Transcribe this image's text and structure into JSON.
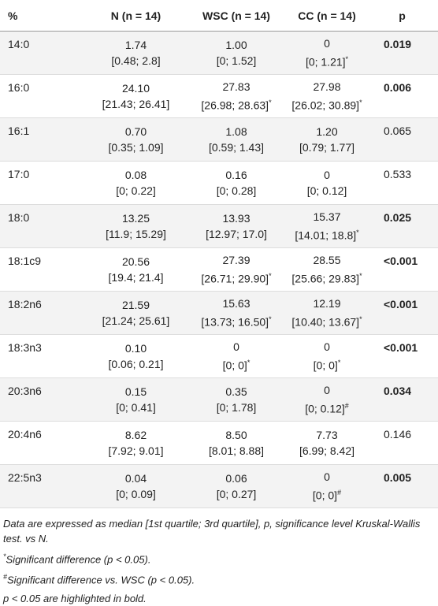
{
  "table": {
    "header": [
      "%",
      "N (n = 14)",
      "WSC (n = 14)",
      "CC (n = 14)",
      "p"
    ],
    "rows": [
      {
        "label": "14:0",
        "cells": [
          {
            "median": "1.74",
            "range": "[0.48; 2.8]"
          },
          {
            "median": "1.00",
            "range": "[0; 1.52]"
          },
          {
            "median": "0",
            "range": "[0; 1.21]",
            "note": "*"
          }
        ],
        "p": "0.019",
        "bold": true
      },
      {
        "label": "16:0",
        "cells": [
          {
            "median": "24.10",
            "range": "[21.43; 26.41]"
          },
          {
            "median": "27.83",
            "range": "[26.98; 28.63]",
            "note": "*"
          },
          {
            "median": "27.98",
            "range": "[26.02; 30.89]",
            "note": "*"
          }
        ],
        "p": "0.006",
        "bold": true
      },
      {
        "label": "16:1",
        "cells": [
          {
            "median": "0.70",
            "range": "[0.35; 1.09]"
          },
          {
            "median": "1.08",
            "range": "[0.59; 1.43]"
          },
          {
            "median": "1.20",
            "range": "[0.79; 1.77]"
          }
        ],
        "p": "0.065",
        "bold": false
      },
      {
        "label": "17:0",
        "cells": [
          {
            "median": "0.08",
            "range": "[0; 0.22]"
          },
          {
            "median": "0.16",
            "range": "[0; 0.28]"
          },
          {
            "median": "0",
            "range": "[0; 0.12]"
          }
        ],
        "p": "0.533",
        "bold": false
      },
      {
        "label": "18:0",
        "cells": [
          {
            "median": "13.25",
            "range": "[11.9; 15.29]"
          },
          {
            "median": "13.93",
            "range": "[12.97; 17.0]"
          },
          {
            "median": "15.37",
            "range": "[14.01; 18.8]",
            "note": "*"
          }
        ],
        "p": "0.025",
        "bold": true
      },
      {
        "label": "18:1c9",
        "cells": [
          {
            "median": "20.56",
            "range": "[19.4; 21.4]"
          },
          {
            "median": "27.39",
            "range": "[26.71; 29.90]",
            "note": "*"
          },
          {
            "median": "28.55",
            "range": "[25.66; 29.83]",
            "note": "*"
          }
        ],
        "p": "<0.001",
        "bold": true
      },
      {
        "label": "18:2n6",
        "cells": [
          {
            "median": "21.59",
            "range": "[21.24; 25.61]"
          },
          {
            "median": "15.63",
            "range": "[13.73; 16.50]",
            "note": "*"
          },
          {
            "median": "12.19",
            "range": "[10.40; 13.67]",
            "note": "*"
          }
        ],
        "p": "<0.001",
        "bold": true
      },
      {
        "label": "18:3n3",
        "cells": [
          {
            "median": "0.10",
            "range": "[0.06; 0.21]"
          },
          {
            "median": "0",
            "range": "[0; 0]",
            "note": "*"
          },
          {
            "median": "0",
            "range": "[0; 0]",
            "note": "*"
          }
        ],
        "p": "<0.001",
        "bold": true
      },
      {
        "label": "20:3n6",
        "cells": [
          {
            "median": "0.15",
            "range": "[0; 0.41]"
          },
          {
            "median": "0.35",
            "range": "[0; 1.78]"
          },
          {
            "median": "0",
            "range": "[0; 0.12]",
            "note": "#"
          }
        ],
        "p": "0.034",
        "bold": true
      },
      {
        "label": "20:4n6",
        "cells": [
          {
            "median": "8.62",
            "range": "[7.92; 9.01]"
          },
          {
            "median": "8.50",
            "range": "[8.01; 8.88]"
          },
          {
            "median": "7.73",
            "range": "[6.99; 8.42]"
          }
        ],
        "p": "0.146",
        "bold": false
      },
      {
        "label": "22:5n3",
        "cells": [
          {
            "median": "0.04",
            "range": "[0; 0.09]"
          },
          {
            "median": "0.06",
            "range": "[0; 0.27]"
          },
          {
            "median": "0",
            "range": "[0; 0]",
            "note": "#"
          }
        ],
        "p": "0.005",
        "bold": true
      }
    ]
  },
  "footnotes": [
    {
      "text": "Data are expressed as median [1st quartile; 3rd quartile], p, significance level Kruskal-Wallis test. vs N."
    },
    {
      "marker": "*",
      "text": "Significant difference (p < 0.05)."
    },
    {
      "marker": "#",
      "text": "Significant difference vs. WSC (p < 0.05)."
    },
    {
      "text": "p < 0.05 are highlighted in bold."
    }
  ]
}
